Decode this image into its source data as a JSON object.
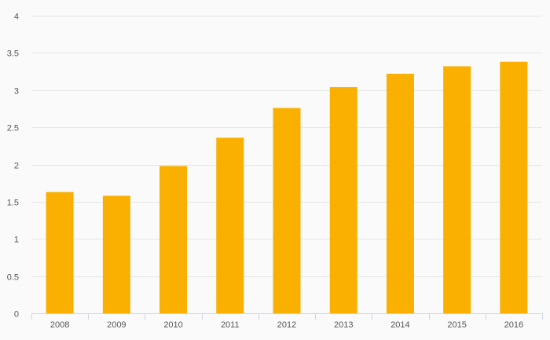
{
  "chart_data": {
    "type": "bar",
    "title": "",
    "xlabel": "",
    "ylabel": "",
    "categories": [
      "2008",
      "2009",
      "2010",
      "2011",
      "2012",
      "2013",
      "2014",
      "2015",
      "2016"
    ],
    "series": [
      {
        "values": [
          1.63,
          1.58,
          1.98,
          2.36,
          2.76,
          3.04,
          3.22,
          3.32,
          3.38
        ],
        "color": "#f9b000"
      }
    ],
    "ylim": [
      0,
      4
    ],
    "yticks": [
      "0",
      "0.5",
      "1",
      "1.5",
      "2",
      "2.5",
      "3",
      "3.5",
      "4"
    ],
    "grid": true,
    "legend": "none",
    "colors": {
      "background": "#fafafa",
      "grid": "#e6e6e6",
      "axis": "#cfd3e6",
      "tick_text": "#555555"
    }
  }
}
